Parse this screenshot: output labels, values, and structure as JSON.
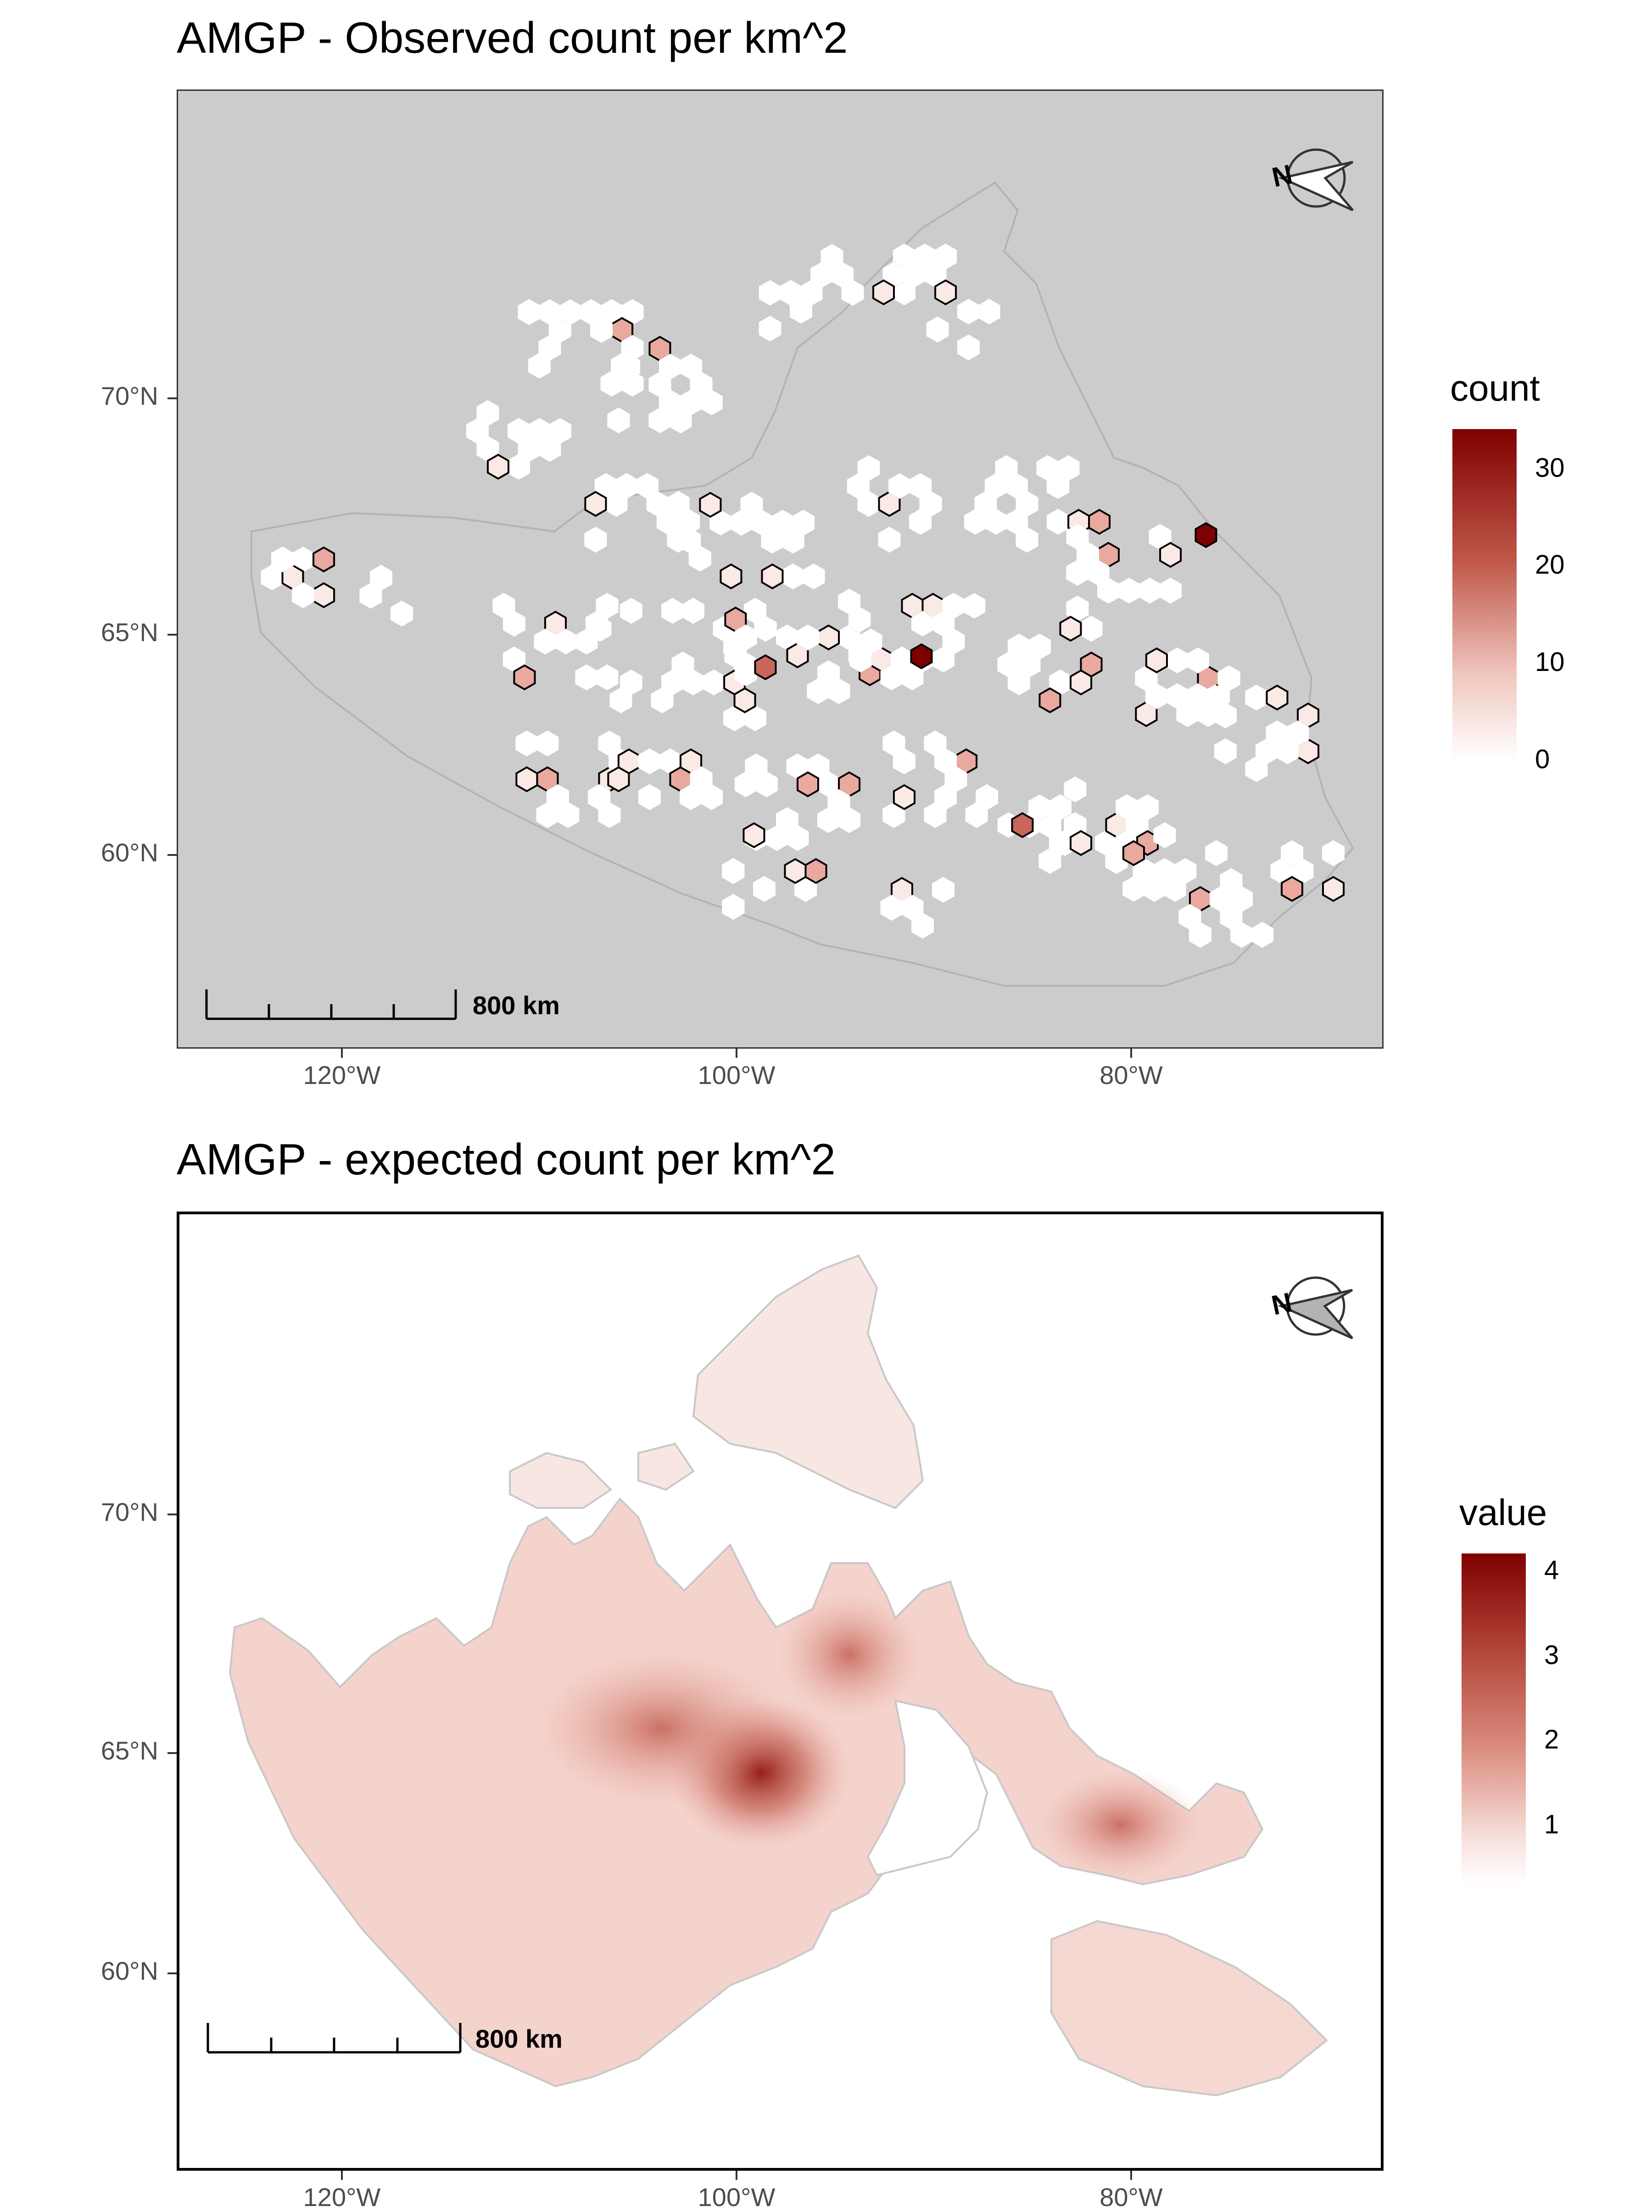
{
  "top_panel": {
    "title": "AMGP - Observed count per km^2",
    "legend_title": "count",
    "legend_labels": [
      "30",
      "20",
      "10",
      "0"
    ],
    "legend_values": [
      30,
      20,
      10,
      0
    ],
    "legend_range": [
      0,
      34
    ],
    "scale_label": "800 km",
    "y_labels": [
      "70°N",
      "65°N",
      "60°N"
    ],
    "x_labels": [
      "120°W",
      "100°W",
      "80°W"
    ]
  },
  "bottom_panel": {
    "title": "AMGP - expected count per km^2",
    "legend_title": "value",
    "legend_labels": [
      "4",
      "3",
      "2",
      "1"
    ],
    "legend_values": [
      4,
      3,
      2,
      1
    ],
    "legend_range": [
      0.3,
      4.2
    ],
    "scale_label": "800 km",
    "y_labels": [
      "70°N",
      "65°N",
      "60°N"
    ],
    "x_labels": [
      "120°W",
      "100°W",
      "80°W"
    ]
  },
  "colors": {
    "panel_bg_top": "#cccccc",
    "low": "#ffffff",
    "high": "#7f0000"
  },
  "icons": [
    "north-arrow-icon",
    "scale-bar-icon"
  ]
}
